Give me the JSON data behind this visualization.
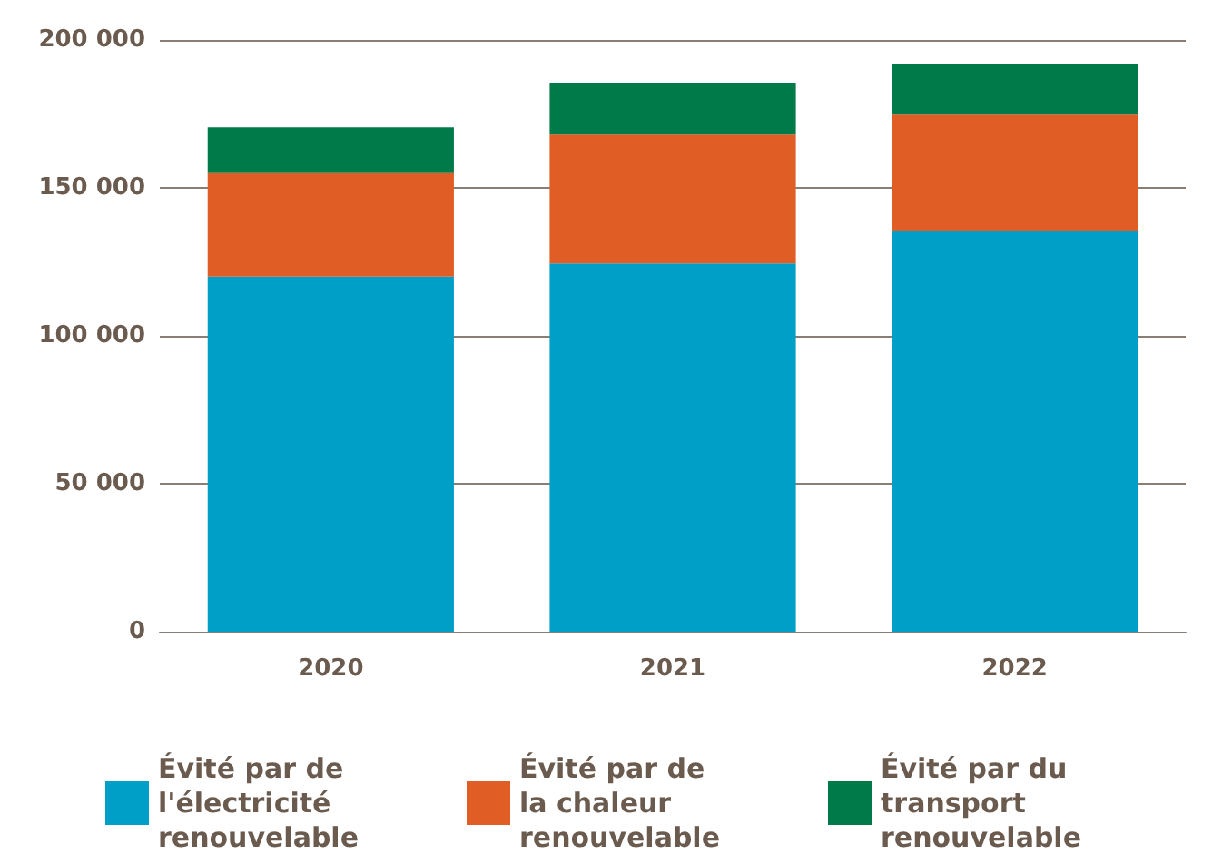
{
  "chart_data": {
    "type": "bar",
    "stacked": true,
    "categories": [
      "2020",
      "2021",
      "2022"
    ],
    "series": [
      {
        "name": "Évité par de l'électricité renouvelable",
        "color": "#009fc7",
        "values": [
          120000,
          124500,
          135600
        ]
      },
      {
        "name": "Évité par de la chaleur renouvelable",
        "color": "#e05d25",
        "values": [
          35000,
          43500,
          39200
        ]
      },
      {
        "name": "Évité par du transport renouvelable",
        "color": "#007a48",
        "values": [
          15500,
          17300,
          17200
        ]
      }
    ],
    "ylim": [
      0,
      200000
    ],
    "yticks": [
      0,
      50000,
      100000,
      150000,
      200000
    ],
    "grid": "y",
    "legend": "bottom"
  }
}
